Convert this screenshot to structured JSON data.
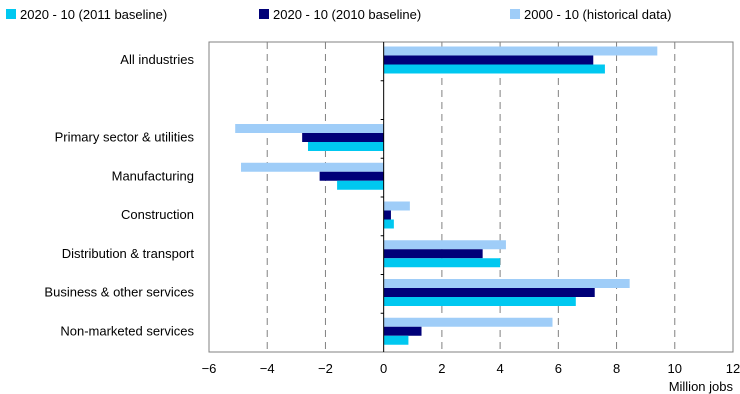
{
  "chart_data": {
    "type": "bar",
    "orientation": "horizontal",
    "categories": [
      "All industries",
      "",
      "Primary sector & utilities",
      "Manufacturing",
      "Construction",
      "Distribution & transport",
      "Business & other services",
      "Non-marketed services"
    ],
    "series": [
      {
        "name": "2020 - 10 (2011 baseline)",
        "color": "#00c8f0",
        "values": [
          7.6,
          null,
          -2.6,
          -1.6,
          0.35,
          4.0,
          6.6,
          0.85
        ]
      },
      {
        "name": "2020 - 10 (2010 baseline)",
        "color": "#000078",
        "values": [
          7.2,
          null,
          -2.8,
          -2.2,
          0.25,
          3.4,
          7.25,
          1.3
        ]
      },
      {
        "name": "2000 - 10 (historical data)",
        "color": "#9fcdf8",
        "values": [
          9.4,
          null,
          -5.1,
          -4.9,
          0.9,
          4.2,
          8.45,
          5.8
        ]
      }
    ],
    "xlim": [
      -6,
      12
    ],
    "xticks": [
      -6,
      -4,
      -2,
      0,
      2,
      4,
      6,
      8,
      10,
      12
    ],
    "xlabel": "Million jobs",
    "grid": "vertical dashed",
    "legend": "top"
  }
}
